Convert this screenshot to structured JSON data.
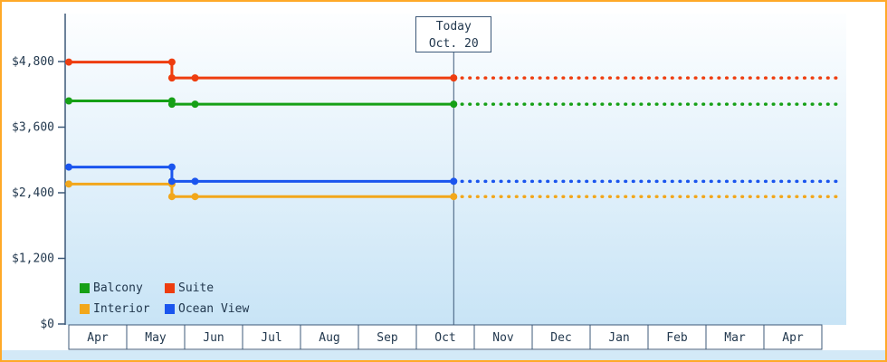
{
  "chart_data": {
    "type": "line",
    "title": "",
    "grid": false,
    "y_axis": {
      "range": [
        0,
        5000
      ],
      "ticks": [
        {
          "value": 0,
          "label": "$0"
        },
        {
          "value": 1200,
          "label": "$1,200"
        },
        {
          "value": 2400,
          "label": "$2,400"
        },
        {
          "value": 3600,
          "label": "$3,600"
        },
        {
          "value": 4800,
          "label": "$4,800"
        }
      ]
    },
    "x_axis": {
      "tick_labels": [
        "Apr",
        "May",
        "Jun",
        "Jul",
        "Aug",
        "Sep",
        "Oct",
        "Nov",
        "Dec",
        "Jan",
        "Feb",
        "Mar",
        "Apr"
      ]
    },
    "annotation": {
      "line1": "Today",
      "line2": "Oct. 20",
      "month_index": 6,
      "month_fraction": 0.645
    },
    "legend": {
      "position": "bottom-left-inside",
      "rows": [
        [
          "Balcony",
          "Suite"
        ],
        [
          "Interior",
          "Ocean View"
        ]
      ]
    },
    "series": [
      {
        "name": "Balcony",
        "color": "#16a016",
        "points": [
          {
            "month": 0,
            "value": 4080
          },
          {
            "month": 1.78,
            "value": 4080
          },
          {
            "month": 1.78,
            "value": 4020
          },
          {
            "month": 2.18,
            "value": 4020
          },
          {
            "month": 6.645,
            "value": 4020
          }
        ],
        "projection": {
          "style": "dotted",
          "value": 4020,
          "to_month": 13.35
        }
      },
      {
        "name": "Suite",
        "color": "#ee3d0f",
        "points": [
          {
            "month": 0,
            "value": 4790
          },
          {
            "month": 1.78,
            "value": 4790
          },
          {
            "month": 1.78,
            "value": 4500
          },
          {
            "month": 2.18,
            "value": 4500
          },
          {
            "month": 6.645,
            "value": 4500
          }
        ],
        "projection": {
          "style": "dotted",
          "value": 4500,
          "to_month": 13.35
        }
      },
      {
        "name": "Interior",
        "color": "#f2a71b",
        "points": [
          {
            "month": 0,
            "value": 2560
          },
          {
            "month": 1.78,
            "value": 2560
          },
          {
            "month": 1.78,
            "value": 2330
          },
          {
            "month": 2.18,
            "value": 2330
          },
          {
            "month": 6.645,
            "value": 2330
          }
        ],
        "projection": {
          "style": "dotted",
          "value": 2330,
          "to_month": 13.35
        }
      },
      {
        "name": "Ocean View",
        "color": "#1a55ee",
        "points": [
          {
            "month": 0,
            "value": 2870
          },
          {
            "month": 1.78,
            "value": 2870
          },
          {
            "month": 1.78,
            "value": 2610
          },
          {
            "month": 2.18,
            "value": 2610
          },
          {
            "month": 6.645,
            "value": 2610
          }
        ],
        "projection": {
          "style": "dotted",
          "value": 2610,
          "to_month": 13.35
        }
      }
    ],
    "colors": {
      "frame_border": "#ffa928",
      "axis": "#3c5878",
      "text": "#22384e",
      "plot_gradient_top": "#fdfeff",
      "plot_gradient_bottom": "#c8e4f6",
      "bottom_strip": "#d3e9f7",
      "month_cell_fill": "#ffffff"
    }
  }
}
